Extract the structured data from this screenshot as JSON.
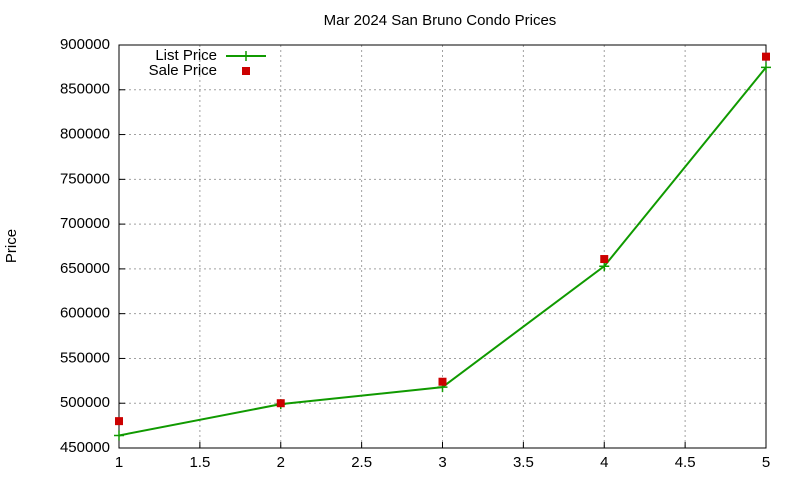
{
  "chart_data": {
    "type": "line",
    "title": "Mar 2024 San Bruno Condo Prices",
    "y_label": "Price",
    "x": [
      1,
      2,
      3,
      4,
      5
    ],
    "series": [
      {
        "name": "List Price",
        "color": "#109a00",
        "marker": "plus",
        "line": true,
        "values": [
          464000,
          499000,
          518000,
          653000,
          875000
        ]
      },
      {
        "name": "Sale Price",
        "color": "#cc0000",
        "marker": "square",
        "line": false,
        "values": [
          480000,
          500000,
          524000,
          661000,
          887000
        ]
      }
    ],
    "xlim": [
      1,
      5
    ],
    "xticks": [
      1,
      1.5,
      2,
      2.5,
      3,
      3.5,
      4,
      4.5,
      5
    ],
    "ylim": [
      450000,
      900000
    ],
    "yticks": [
      450000,
      500000,
      550000,
      600000,
      650000,
      700000,
      750000,
      800000,
      850000,
      900000
    ],
    "grid": true,
    "legend": "top-left"
  }
}
